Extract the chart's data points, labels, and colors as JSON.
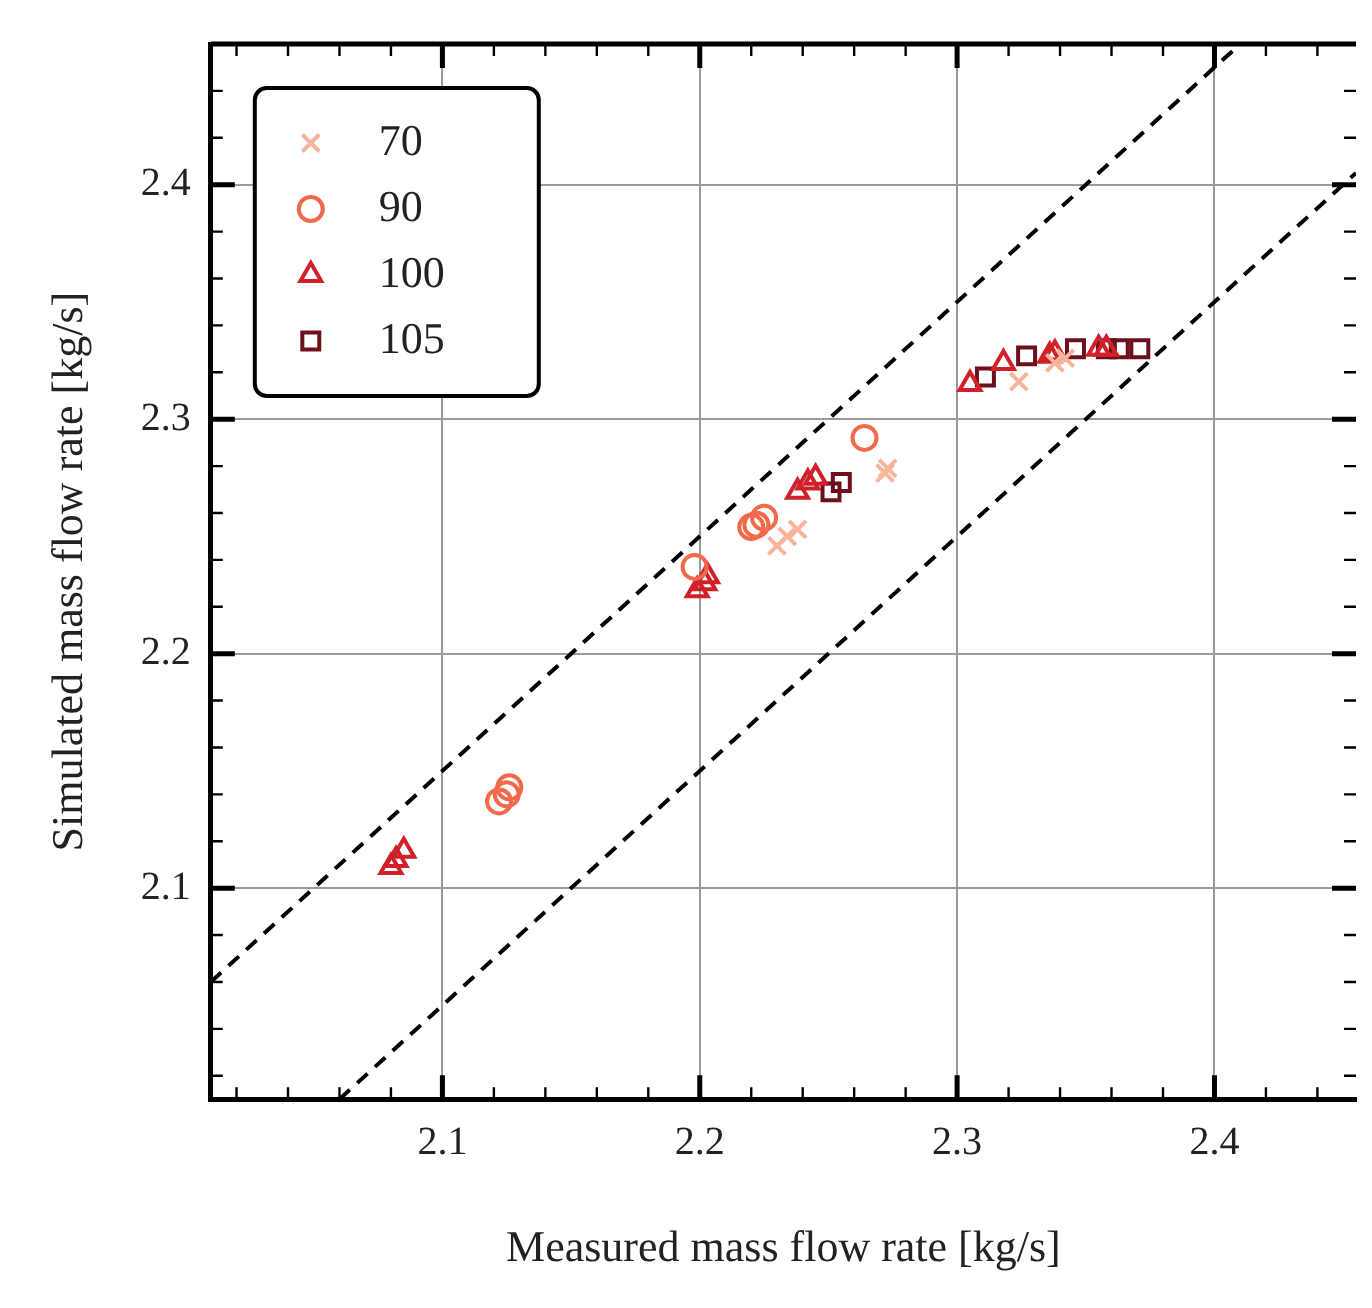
{
  "chart_data": {
    "type": "scatter",
    "xlabel": "Measured mass flow rate [kg/s]",
    "ylabel": "Simulated mass flow rate [kg/s]",
    "xlim": [
      2.01,
      2.455
    ],
    "ylim": [
      2.01,
      2.46
    ],
    "xticks": [
      {
        "value": 2.02,
        "label": null
      },
      {
        "value": 2.04,
        "label": null
      },
      {
        "value": 2.06,
        "label": null
      },
      {
        "value": 2.08,
        "label": null
      },
      2.1,
      {
        "value": 2.12,
        "label": null
      },
      {
        "value": 2.14,
        "label": null
      },
      {
        "value": 2.16,
        "label": null
      },
      {
        "value": 2.18,
        "label": null
      },
      2.2,
      {
        "value": 2.22,
        "label": null
      },
      {
        "value": 2.24,
        "label": null
      },
      {
        "value": 2.26,
        "label": null
      },
      {
        "value": 2.28,
        "label": null
      },
      2.3,
      {
        "value": 2.32,
        "label": null
      },
      {
        "value": 2.34,
        "label": null
      },
      {
        "value": 2.36,
        "label": null
      },
      {
        "value": 2.38,
        "label": null
      },
      2.4,
      {
        "value": 2.42,
        "label": null
      },
      {
        "value": 2.44,
        "label": null
      }
    ],
    "yticks": [
      {
        "value": 2.02,
        "label": null
      },
      {
        "value": 2.04,
        "label": null
      },
      {
        "value": 2.06,
        "label": null
      },
      {
        "value": 2.08,
        "label": null
      },
      2.1,
      {
        "value": 2.12,
        "label": null
      },
      {
        "value": 2.14,
        "label": null
      },
      {
        "value": 2.16,
        "label": null
      },
      {
        "value": 2.18,
        "label": null
      },
      2.2,
      {
        "value": 2.22,
        "label": null
      },
      {
        "value": 2.24,
        "label": null
      },
      {
        "value": 2.26,
        "label": null
      },
      {
        "value": 2.28,
        "label": null
      },
      2.3,
      {
        "value": 2.32,
        "label": null
      },
      {
        "value": 2.34,
        "label": null
      },
      {
        "value": 2.36,
        "label": null
      },
      {
        "value": 2.38,
        "label": null
      },
      2.4,
      {
        "value": 2.42,
        "label": null
      },
      {
        "value": 2.44,
        "label": null
      }
    ],
    "grid": true,
    "legend": "top left",
    "series": [
      {
        "name": "70",
        "color": "#f7b49c",
        "marker": "cross",
        "x": [
          2.23,
          2.234,
          2.238,
          2.272,
          2.273,
          2.324,
          2.338,
          2.342
        ],
        "values": [
          2.246,
          2.25,
          2.253,
          2.277,
          2.279,
          2.316,
          2.324,
          2.326
        ]
      },
      {
        "name": "90",
        "color": "#f26a4b",
        "marker": "circle",
        "x": [
          2.122,
          2.125,
          2.126,
          2.198,
          2.22,
          2.222,
          2.225,
          2.264
        ],
        "values": [
          2.137,
          2.14,
          2.143,
          2.237,
          2.254,
          2.255,
          2.258,
          2.292
        ]
      },
      {
        "name": "100",
        "color": "#d2202a",
        "marker": "triangle",
        "x": [
          2.08,
          2.082,
          2.085,
          2.199,
          2.202,
          2.203,
          2.238,
          2.242,
          2.245,
          2.305,
          2.318,
          2.336,
          2.338,
          2.355,
          2.358
        ],
        "values": [
          2.109,
          2.112,
          2.116,
          2.227,
          2.23,
          2.233,
          2.269,
          2.273,
          2.275,
          2.315,
          2.324,
          2.327,
          2.328,
          2.33,
          2.33
        ]
      },
      {
        "name": "105",
        "color": "#6e0f1c",
        "marker": "square",
        "x": [
          2.251,
          2.255,
          2.311,
          2.327,
          2.346,
          2.358,
          2.363,
          2.371
        ],
        "values": [
          2.269,
          2.273,
          2.318,
          2.327,
          2.33,
          2.33,
          2.33,
          2.33
        ]
      },
      {
        "type": "line",
        "color": "#000000",
        "line_style": "dashed",
        "marker": "none",
        "x": [
          2.01,
          2.41
        ],
        "values": [
          2.06,
          2.46
        ]
      },
      {
        "type": "line",
        "color": "#000000",
        "line_style": "dashed",
        "marker": "none",
        "x": [
          2.06,
          2.455
        ],
        "values": [
          2.01,
          2.405
        ]
      }
    ]
  }
}
